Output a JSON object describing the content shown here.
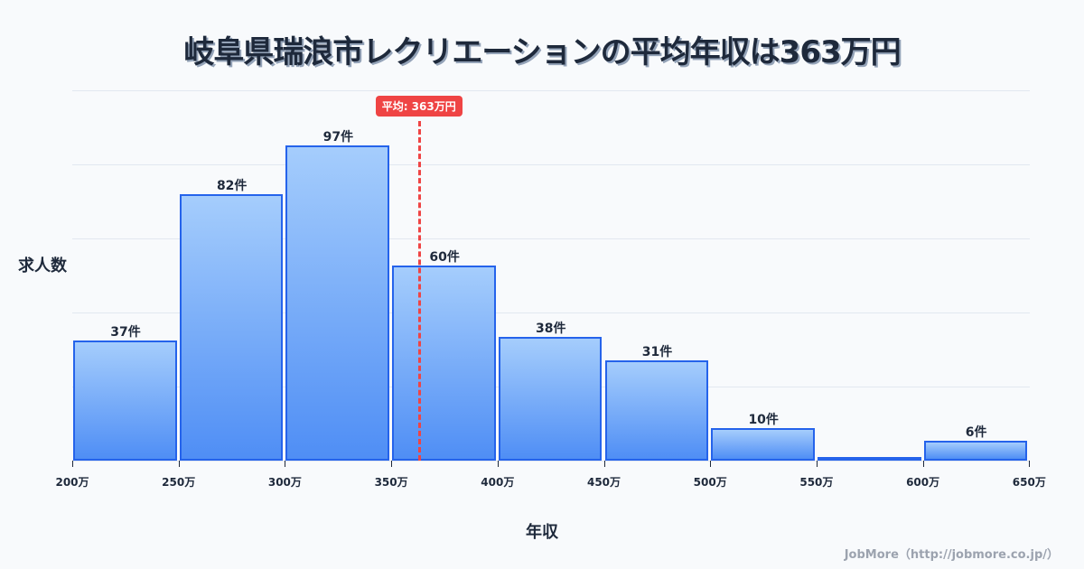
{
  "title": "岐阜県瑞浪市レクリエーションの平均年収は363万円",
  "y_axis_label": "求人数",
  "x_axis_label": "年収",
  "credit": "JobMore（http://jobmore.co.jp/）",
  "average": {
    "label": "平均: 363万円",
    "value": 363
  },
  "colors": {
    "bar_border": "#2563eb",
    "bar_top": "#a5cdfc",
    "bar_bottom": "#4f8ef5",
    "average": "#ef4444"
  },
  "chart_data": {
    "type": "bar",
    "title": "岐阜県瑞浪市レクリエーションの平均年収は363万円",
    "xlabel": "年収",
    "ylabel": "求人数",
    "categories": [
      "200-250万",
      "250-300万",
      "300-350万",
      "350-400万",
      "400-450万",
      "450-500万",
      "500-550万",
      "550-600万",
      "600-650万"
    ],
    "values": [
      37,
      82,
      97,
      60,
      38,
      31,
      10,
      1,
      6
    ],
    "bar_labels": [
      "37件",
      "82件",
      "97件",
      "60件",
      "38件",
      "31件",
      "10件",
      "",
      "6件"
    ],
    "x_ticks": [
      "200万",
      "250万",
      "300万",
      "350万",
      "400万",
      "450万",
      "500万",
      "550万",
      "600万",
      "650万"
    ],
    "ylim": [
      0,
      114
    ],
    "grid": true,
    "annotations": [
      {
        "type": "vline",
        "x": 363,
        "label": "平均: 363万円"
      }
    ]
  }
}
